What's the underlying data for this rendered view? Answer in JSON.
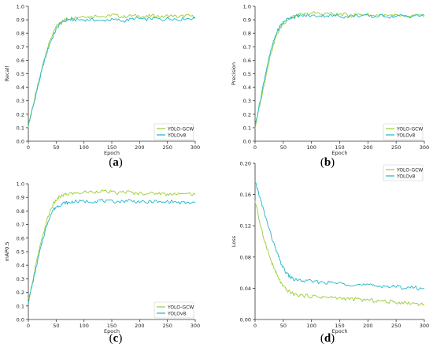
{
  "colors": {
    "yolo_gcw": "#9ACD32",
    "yolov8": "#1FB5C9",
    "axis": "#333333"
  },
  "chart_data": [
    {
      "type": "line",
      "panel": "a",
      "caption": "a",
      "xlabel": "Epoch",
      "ylabel": "Recall",
      "xlim": [
        0,
        300
      ],
      "ylim": [
        0,
        1.0
      ],
      "xticks": [
        "0",
        "50",
        "100",
        "150",
        "200",
        "250",
        "300"
      ],
      "yticks": [
        "0.0",
        "0.1",
        "0.2",
        "0.3",
        "0.4",
        "0.5",
        "0.6",
        "0.7",
        "0.8",
        "0.9",
        "1.0"
      ],
      "legend": "bottom-right",
      "series": [
        {
          "name": "YOLO-GCW",
          "x": [
            0,
            5,
            10,
            15,
            20,
            25,
            30,
            35,
            40,
            45,
            50,
            55,
            60,
            65,
            70,
            75,
            80,
            90,
            100,
            110,
            120,
            130,
            140,
            150,
            160,
            170,
            180,
            190,
            200,
            210,
            220,
            230,
            240,
            250,
            260,
            270,
            280,
            290,
            300
          ],
          "y": [
            0.11,
            0.21,
            0.29,
            0.38,
            0.46,
            0.55,
            0.63,
            0.7,
            0.76,
            0.8,
            0.85,
            0.87,
            0.89,
            0.9,
            0.91,
            0.91,
            0.92,
            0.92,
            0.93,
            0.92,
            0.93,
            0.93,
            0.92,
            0.94,
            0.93,
            0.92,
            0.93,
            0.93,
            0.93,
            0.92,
            0.93,
            0.93,
            0.92,
            0.93,
            0.93,
            0.92,
            0.93,
            0.93,
            0.92
          ]
        },
        {
          "name": "YOLOv8",
          "x": [
            0,
            5,
            10,
            15,
            20,
            25,
            30,
            35,
            40,
            45,
            50,
            55,
            60,
            65,
            70,
            75,
            80,
            90,
            100,
            110,
            120,
            130,
            140,
            150,
            160,
            170,
            180,
            190,
            200,
            210,
            220,
            230,
            240,
            250,
            260,
            270,
            280,
            290,
            300
          ],
          "y": [
            0.12,
            0.2,
            0.28,
            0.37,
            0.45,
            0.54,
            0.61,
            0.68,
            0.74,
            0.78,
            0.83,
            0.86,
            0.88,
            0.89,
            0.9,
            0.9,
            0.9,
            0.9,
            0.9,
            0.9,
            0.9,
            0.89,
            0.9,
            0.9,
            0.9,
            0.89,
            0.9,
            0.91,
            0.91,
            0.9,
            0.91,
            0.91,
            0.9,
            0.91,
            0.91,
            0.9,
            0.91,
            0.91,
            0.91
          ]
        }
      ]
    },
    {
      "type": "line",
      "panel": "b",
      "caption": "b",
      "xlabel": "Epoch",
      "ylabel": "Precision",
      "xlim": [
        0,
        300
      ],
      "ylim": [
        0,
        1.0
      ],
      "xticks": [
        "0",
        "50",
        "100",
        "150",
        "200",
        "250",
        "300"
      ],
      "yticks": [
        "0.0",
        "0.1",
        "0.2",
        "0.3",
        "0.4",
        "0.5",
        "0.6",
        "0.7",
        "0.8",
        "0.9",
        "1.0"
      ],
      "legend": "bottom-right",
      "series": [
        {
          "name": "YOLO-GCW",
          "x": [
            0,
            5,
            10,
            15,
            20,
            25,
            30,
            35,
            40,
            45,
            50,
            55,
            60,
            65,
            70,
            75,
            80,
            90,
            100,
            110,
            120,
            130,
            140,
            150,
            160,
            170,
            180,
            190,
            200,
            210,
            220,
            230,
            240,
            250,
            260,
            270,
            280,
            290,
            300
          ],
          "y": [
            0.1,
            0.2,
            0.3,
            0.4,
            0.5,
            0.6,
            0.68,
            0.75,
            0.8,
            0.84,
            0.87,
            0.89,
            0.91,
            0.92,
            0.93,
            0.93,
            0.94,
            0.94,
            0.95,
            0.95,
            0.94,
            0.95,
            0.94,
            0.94,
            0.94,
            0.93,
            0.94,
            0.94,
            0.94,
            0.93,
            0.94,
            0.93,
            0.93,
            0.93,
            0.93,
            0.92,
            0.93,
            0.93,
            0.92
          ]
        },
        {
          "name": "YOLOv8",
          "x": [
            0,
            5,
            10,
            15,
            20,
            25,
            30,
            35,
            40,
            45,
            50,
            55,
            60,
            65,
            70,
            75,
            80,
            90,
            100,
            110,
            120,
            130,
            140,
            150,
            160,
            170,
            180,
            190,
            200,
            210,
            220,
            230,
            240,
            250,
            260,
            270,
            280,
            290,
            300
          ],
          "y": [
            0.11,
            0.22,
            0.32,
            0.43,
            0.53,
            0.62,
            0.7,
            0.77,
            0.82,
            0.86,
            0.88,
            0.9,
            0.91,
            0.92,
            0.92,
            0.93,
            0.93,
            0.93,
            0.93,
            0.93,
            0.93,
            0.93,
            0.93,
            0.93,
            0.92,
            0.93,
            0.93,
            0.93,
            0.93,
            0.92,
            0.93,
            0.93,
            0.92,
            0.93,
            0.93,
            0.92,
            0.93,
            0.93,
            0.93
          ]
        }
      ]
    },
    {
      "type": "line",
      "panel": "c",
      "caption": "c",
      "xlabel": "Epoch",
      "ylabel": "mAP0.5",
      "xlim": [
        0,
        300
      ],
      "ylim": [
        0,
        1.0
      ],
      "xticks": [
        "0",
        "50",
        "100",
        "150",
        "200",
        "250",
        "300"
      ],
      "yticks": [
        "0.0",
        "0.1",
        "0.2",
        "0.3",
        "0.4",
        "0.5",
        "0.6",
        "0.7",
        "0.8",
        "0.9",
        "1.0"
      ],
      "legend": "bottom-right",
      "series": [
        {
          "name": "YOLO-GCW",
          "x": [
            0,
            5,
            10,
            15,
            20,
            25,
            30,
            35,
            40,
            45,
            50,
            55,
            60,
            65,
            70,
            75,
            80,
            90,
            100,
            110,
            120,
            130,
            140,
            150,
            160,
            170,
            180,
            190,
            200,
            210,
            220,
            230,
            240,
            250,
            260,
            270,
            280,
            290,
            300
          ],
          "y": [
            0.14,
            0.23,
            0.33,
            0.43,
            0.52,
            0.6,
            0.68,
            0.75,
            0.81,
            0.85,
            0.88,
            0.9,
            0.91,
            0.92,
            0.92,
            0.93,
            0.93,
            0.93,
            0.94,
            0.94,
            0.94,
            0.95,
            0.94,
            0.94,
            0.93,
            0.94,
            0.94,
            0.93,
            0.93,
            0.93,
            0.93,
            0.93,
            0.93,
            0.92,
            0.93,
            0.93,
            0.92,
            0.93,
            0.92
          ]
        },
        {
          "name": "YOLOv8",
          "x": [
            0,
            5,
            10,
            15,
            20,
            25,
            30,
            35,
            40,
            45,
            50,
            55,
            60,
            65,
            70,
            75,
            80,
            90,
            100,
            110,
            120,
            130,
            140,
            150,
            160,
            170,
            180,
            190,
            200,
            210,
            220,
            230,
            240,
            250,
            260,
            270,
            280,
            290,
            300
          ],
          "y": [
            0.13,
            0.22,
            0.31,
            0.4,
            0.49,
            0.57,
            0.65,
            0.72,
            0.77,
            0.81,
            0.83,
            0.84,
            0.85,
            0.86,
            0.86,
            0.86,
            0.87,
            0.87,
            0.87,
            0.87,
            0.87,
            0.88,
            0.87,
            0.87,
            0.87,
            0.87,
            0.88,
            0.87,
            0.87,
            0.86,
            0.87,
            0.87,
            0.86,
            0.87,
            0.87,
            0.86,
            0.86,
            0.86,
            0.86
          ]
        }
      ]
    },
    {
      "type": "line",
      "panel": "d",
      "caption": "d",
      "xlabel": "Epoch",
      "ylabel": "Loss",
      "xlim": [
        0,
        300
      ],
      "ylim": [
        0,
        0.2
      ],
      "xticks": [
        "0",
        "50",
        "100",
        "150",
        "200",
        "250",
        "300"
      ],
      "yticks": [
        "0.00",
        "0.04",
        "0.08",
        "0.12",
        "0.16",
        "0.20"
      ],
      "legend": "top-right",
      "series": [
        {
          "name": "YOLO-GCW",
          "x": [
            0,
            3,
            6,
            10,
            15,
            20,
            25,
            30,
            35,
            40,
            45,
            50,
            55,
            60,
            65,
            70,
            80,
            90,
            100,
            110,
            120,
            130,
            140,
            150,
            160,
            170,
            180,
            190,
            200,
            210,
            220,
            230,
            240,
            250,
            260,
            270,
            280,
            290,
            300
          ],
          "y": [
            0.15,
            0.145,
            0.132,
            0.118,
            0.105,
            0.095,
            0.082,
            0.072,
            0.063,
            0.055,
            0.048,
            0.042,
            0.038,
            0.036,
            0.034,
            0.032,
            0.031,
            0.03,
            0.03,
            0.029,
            0.029,
            0.028,
            0.028,
            0.027,
            0.027,
            0.026,
            0.026,
            0.025,
            0.025,
            0.024,
            0.024,
            0.023,
            0.023,
            0.022,
            0.022,
            0.021,
            0.021,
            0.02,
            0.02
          ]
        },
        {
          "name": "YOLOv8",
          "x": [
            0,
            3,
            6,
            10,
            15,
            20,
            25,
            30,
            35,
            40,
            45,
            50,
            55,
            60,
            65,
            70,
            80,
            90,
            100,
            110,
            120,
            130,
            140,
            150,
            160,
            170,
            180,
            190,
            200,
            210,
            220,
            230,
            240,
            250,
            260,
            270,
            280,
            290,
            300
          ],
          "y": [
            0.175,
            0.17,
            0.163,
            0.152,
            0.14,
            0.128,
            0.116,
            0.104,
            0.093,
            0.083,
            0.074,
            0.066,
            0.06,
            0.056,
            0.053,
            0.051,
            0.05,
            0.049,
            0.049,
            0.048,
            0.048,
            0.047,
            0.047,
            0.046,
            0.046,
            0.045,
            0.045,
            0.044,
            0.044,
            0.043,
            0.043,
            0.043,
            0.042,
            0.042,
            0.041,
            0.041,
            0.041,
            0.04,
            0.04
          ]
        }
      ]
    }
  ]
}
